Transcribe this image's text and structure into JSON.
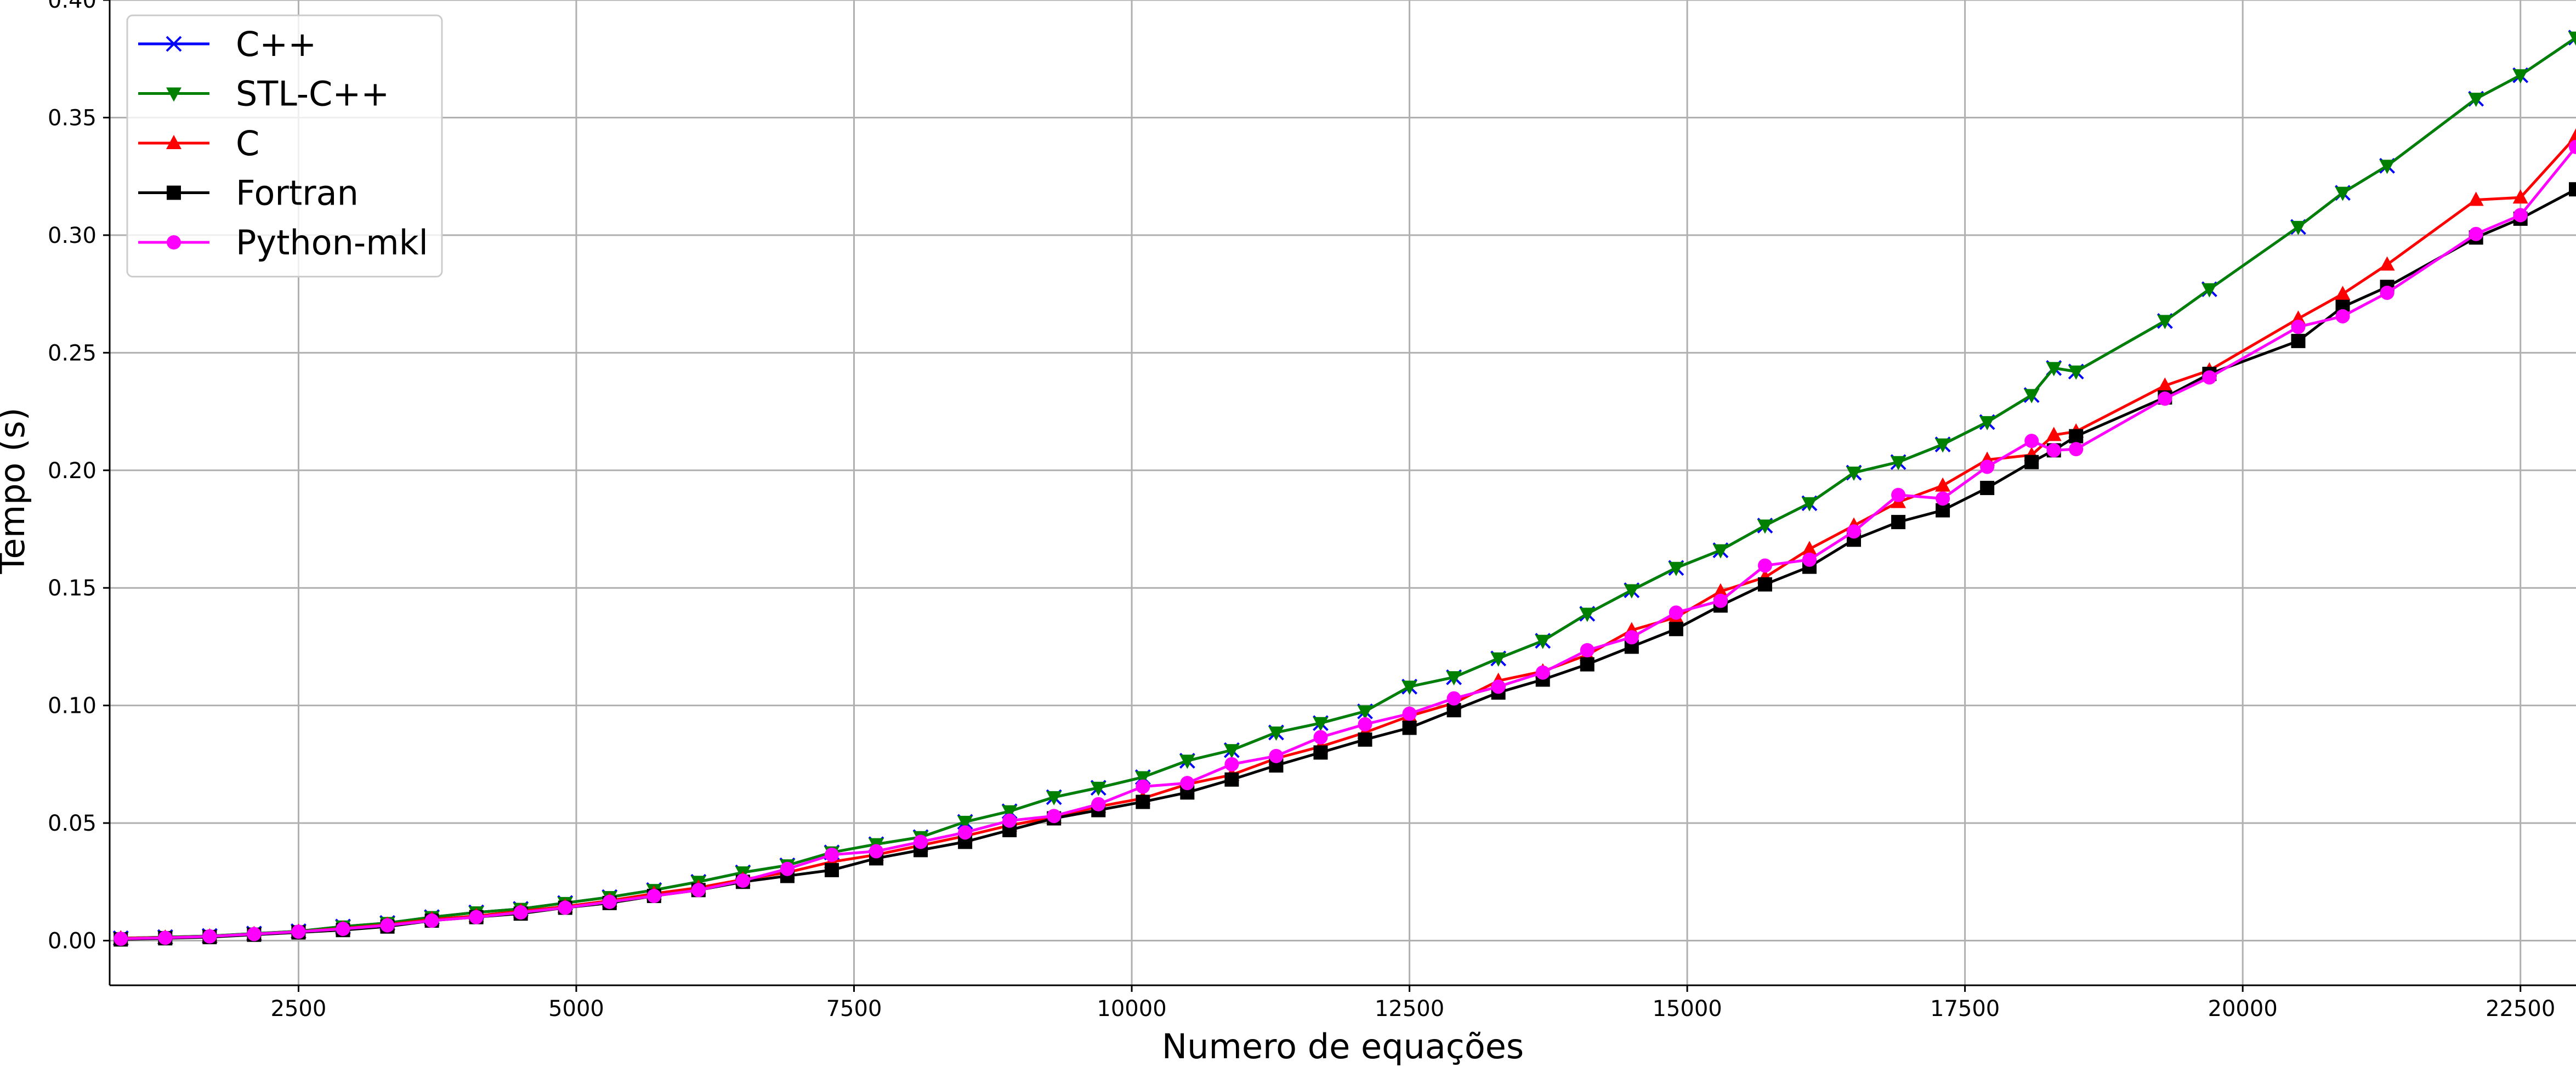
{
  "chart_data": {
    "type": "line",
    "xlabel": "Numero de equações",
    "ylabel": "Tempo (s)",
    "xlim": [
      800,
      23000
    ],
    "ylim": [
      -0.019,
      0.4
    ],
    "xticks": [
      2500,
      5000,
      7500,
      10000,
      12500,
      15000,
      17500,
      20000,
      22500
    ],
    "yticks": [
      0.0,
      0.05,
      0.1,
      0.15,
      0.2,
      0.25,
      0.3,
      0.35,
      0.4
    ],
    "xtick_labels": [
      "2500",
      "5000",
      "7500",
      "10000",
      "12500",
      "15000",
      "17500",
      "20000",
      "22500"
    ],
    "ytick_labels": [
      "0.00",
      "0.05",
      "0.10",
      "0.15",
      "0.20",
      "0.25",
      "0.30",
      "0.35",
      "0.40"
    ],
    "grid": true,
    "legend_position": "top-left",
    "series": [
      {
        "name": "C++",
        "color": "#0000ff",
        "marker": "x",
        "x": [
          900,
          1300,
          1700,
          2100,
          2500,
          2900,
          3300,
          3700,
          4100,
          4500,
          4900,
          5300,
          5700,
          6100,
          6500,
          6900,
          7300,
          7700,
          8100,
          8500,
          8900,
          9300,
          9700,
          10100,
          10500,
          10900,
          11300,
          11700,
          12100,
          12500,
          12900,
          13300,
          13700,
          14100,
          14500,
          14900,
          15300,
          15700,
          16100,
          16500,
          16900,
          17300,
          17700,
          18100,
          18300,
          18500,
          19300,
          19700,
          20500,
          20900,
          21300,
          22100,
          22500,
          23000
        ],
        "y": [
          0.001,
          0.0015,
          0.002,
          0.003,
          0.004,
          0.006,
          0.0075,
          0.01,
          0.012,
          0.0135,
          0.016,
          0.0185,
          0.0215,
          0.025,
          0.029,
          0.032,
          0.0375,
          0.041,
          0.044,
          0.0505,
          0.055,
          0.061,
          0.065,
          0.0695,
          0.0765,
          0.081,
          0.0885,
          0.0925,
          0.0975,
          0.108,
          0.112,
          0.12,
          0.1275,
          0.139,
          0.149,
          0.1585,
          0.166,
          0.1765,
          0.186,
          0.199,
          0.2035,
          0.211,
          0.2205,
          0.232,
          0.2435,
          0.242,
          0.2635,
          0.277,
          0.3035,
          0.318,
          0.3295,
          0.358,
          0.368,
          0.384
        ]
      },
      {
        "name": "STL-C++",
        "color": "#008000",
        "marker": "v",
        "x": [
          900,
          1300,
          1700,
          2100,
          2500,
          2900,
          3300,
          3700,
          4100,
          4500,
          4900,
          5300,
          5700,
          6100,
          6500,
          6900,
          7300,
          7700,
          8100,
          8500,
          8900,
          9300,
          9700,
          10100,
          10500,
          10900,
          11300,
          11700,
          12100,
          12500,
          12900,
          13300,
          13700,
          14100,
          14500,
          14900,
          15300,
          15700,
          16100,
          16500,
          16900,
          17300,
          17700,
          18100,
          18300,
          18500,
          19300,
          19700,
          20500,
          20900,
          21300,
          22100,
          22500,
          23000
        ],
        "y": [
          0.001,
          0.0015,
          0.002,
          0.003,
          0.004,
          0.006,
          0.0075,
          0.01,
          0.012,
          0.0135,
          0.016,
          0.0185,
          0.0215,
          0.025,
          0.029,
          0.032,
          0.0375,
          0.041,
          0.044,
          0.0505,
          0.055,
          0.061,
          0.065,
          0.0695,
          0.0765,
          0.081,
          0.0885,
          0.0925,
          0.0975,
          0.108,
          0.112,
          0.12,
          0.1275,
          0.139,
          0.149,
          0.1585,
          0.166,
          0.1765,
          0.186,
          0.199,
          0.2035,
          0.211,
          0.2205,
          0.232,
          0.2435,
          0.242,
          0.2635,
          0.277,
          0.3035,
          0.318,
          0.3295,
          0.358,
          0.368,
          0.384
        ]
      },
      {
        "name": "C",
        "color": "#ff0000",
        "marker": "^",
        "x": [
          900,
          1300,
          1700,
          2100,
          2500,
          2900,
          3300,
          3700,
          4100,
          4500,
          4900,
          5300,
          5700,
          6100,
          6500,
          6900,
          7300,
          7700,
          8100,
          8500,
          8900,
          9300,
          9700,
          10100,
          10500,
          10900,
          11300,
          11700,
          12100,
          12500,
          12900,
          13300,
          13700,
          14100,
          14500,
          14900,
          15300,
          15700,
          16100,
          16500,
          16900,
          17300,
          17700,
          18100,
          18300,
          18500,
          19300,
          19700,
          20500,
          20900,
          21300,
          22100,
          22500,
          23000
        ],
        "y": [
          0.001,
          0.0013,
          0.0018,
          0.0028,
          0.0038,
          0.0052,
          0.0068,
          0.009,
          0.0105,
          0.0125,
          0.0145,
          0.017,
          0.02,
          0.0225,
          0.026,
          0.029,
          0.0335,
          0.0365,
          0.0405,
          0.0445,
          0.049,
          0.0525,
          0.057,
          0.0605,
          0.0665,
          0.0705,
          0.0775,
          0.0825,
          0.0885,
          0.0955,
          0.101,
          0.1105,
          0.1145,
          0.1215,
          0.132,
          0.1375,
          0.1485,
          0.1545,
          0.1665,
          0.1765,
          0.1865,
          0.1935,
          0.2045,
          0.2065,
          0.215,
          0.2165,
          0.236,
          0.2425,
          0.2645,
          0.275,
          0.2875,
          0.315,
          0.316,
          0.342
        ]
      },
      {
        "name": "Fortran",
        "color": "#000000",
        "marker": "s",
        "x": [
          900,
          1300,
          1700,
          2100,
          2500,
          2900,
          3300,
          3700,
          4100,
          4500,
          4900,
          5300,
          5700,
          6100,
          6500,
          6900,
          7300,
          7700,
          8100,
          8500,
          8900,
          9300,
          9700,
          10100,
          10500,
          10900,
          11300,
          11700,
          12100,
          12500,
          12900,
          13300,
          13700,
          14100,
          14500,
          14900,
          15300,
          15700,
          16100,
          16500,
          16900,
          17300,
          17700,
          18100,
          18300,
          18500,
          19300,
          19700,
          20500,
          20900,
          21300,
          22100,
          22500,
          23000
        ],
        "y": [
          0.0005,
          0.001,
          0.0015,
          0.0025,
          0.0035,
          0.0045,
          0.006,
          0.0085,
          0.01,
          0.0115,
          0.014,
          0.016,
          0.019,
          0.0215,
          0.025,
          0.0275,
          0.03,
          0.035,
          0.0385,
          0.042,
          0.047,
          0.052,
          0.0555,
          0.059,
          0.063,
          0.0685,
          0.0745,
          0.08,
          0.0855,
          0.0905,
          0.098,
          0.1055,
          0.111,
          0.1175,
          0.125,
          0.1325,
          0.1425,
          0.1515,
          0.159,
          0.1705,
          0.178,
          0.183,
          0.1925,
          0.2035,
          0.2085,
          0.2145,
          0.231,
          0.241,
          0.255,
          0.2695,
          0.278,
          0.299,
          0.307,
          0.3195
        ]
      },
      {
        "name": "Python-mkl",
        "color": "#ff00ff",
        "marker": "o",
        "x": [
          900,
          1300,
          1700,
          2100,
          2500,
          2900,
          3300,
          3700,
          4100,
          4500,
          4900,
          5300,
          5700,
          6100,
          6500,
          6900,
          7300,
          7700,
          8100,
          8500,
          8900,
          9300,
          9700,
          10100,
          10500,
          10900,
          11300,
          11700,
          12100,
          12500,
          12900,
          13300,
          13700,
          14100,
          14500,
          14900,
          15300,
          15700,
          16100,
          16500,
          16900,
          17300,
          17700,
          18100,
          18300,
          18500,
          19300,
          19700,
          20500,
          20900,
          21300,
          22100,
          22500,
          23000
        ],
        "y": [
          0.0008,
          0.0012,
          0.0018,
          0.0028,
          0.0038,
          0.005,
          0.0065,
          0.0085,
          0.01,
          0.012,
          0.014,
          0.0165,
          0.019,
          0.0215,
          0.0255,
          0.0305,
          0.0365,
          0.038,
          0.042,
          0.046,
          0.051,
          0.053,
          0.058,
          0.0655,
          0.067,
          0.075,
          0.0785,
          0.0865,
          0.092,
          0.0965,
          0.103,
          0.108,
          0.114,
          0.1235,
          0.129,
          0.1395,
          0.1445,
          0.1595,
          0.162,
          0.174,
          0.1895,
          0.188,
          0.2015,
          0.2125,
          0.2085,
          0.209,
          0.2305,
          0.2395,
          0.261,
          0.2655,
          0.2755,
          0.3005,
          0.3085,
          0.3375
        ]
      }
    ]
  }
}
